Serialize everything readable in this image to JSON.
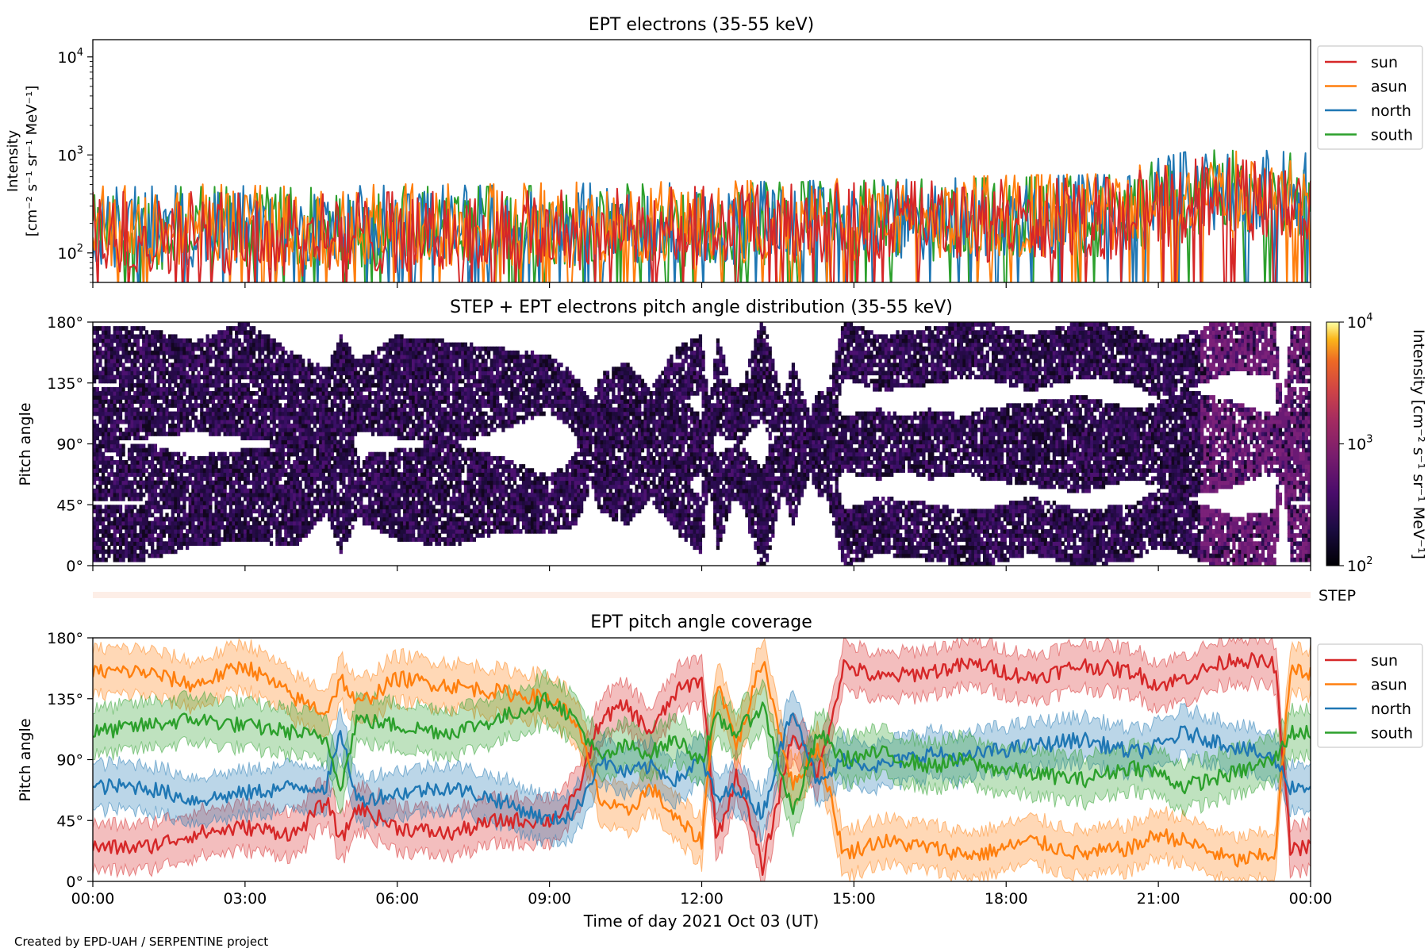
{
  "figure": {
    "credit": "Created by EPD-UAH / SERPENTINE project",
    "xlabel": "Time of day 2021 Oct 03 (UT)",
    "xticks": [
      "00:00",
      "03:00",
      "06:00",
      "09:00",
      "12:00",
      "15:00",
      "18:00",
      "21:00",
      "00:00"
    ]
  },
  "colors": {
    "sun": "#d62728",
    "asun": "#ff7f0e",
    "north": "#1f77b4",
    "south": "#2ca02c"
  },
  "chart_data": [
    {
      "type": "line",
      "title": "EPT electrons (35-55 keV)",
      "ylabel_line1": "Intensity",
      "ylabel_line2": "[cm⁻² s⁻¹ sr⁻¹ MeV⁻¹]",
      "yscale": "log",
      "ylim": [
        50,
        15000
      ],
      "yticks": [
        {
          "base": "10",
          "exp": "2",
          "value": 100
        },
        {
          "base": "10",
          "exp": "3",
          "value": 1000
        },
        {
          "base": "10",
          "exp": "4",
          "value": 10000
        }
      ],
      "x_unit": "hours since 00:00 UT",
      "xlim": [
        0,
        24
      ],
      "legend": "outside-right-top",
      "series": [
        {
          "name": "sun",
          "x": [
            0,
            2,
            4,
            6,
            8,
            10,
            12,
            14,
            16,
            18,
            20,
            21.5,
            22,
            23,
            24
          ],
          "values": [
            150,
            150,
            140,
            150,
            150,
            160,
            170,
            180,
            190,
            200,
            210,
            300,
            350,
            300,
            280
          ]
        },
        {
          "name": "asun",
          "x": [
            0,
            2,
            4,
            6,
            8,
            10,
            12,
            14,
            16,
            18,
            20,
            21.5,
            22,
            23,
            24
          ],
          "values": [
            170,
            180,
            170,
            180,
            180,
            190,
            190,
            200,
            210,
            220,
            230,
            350,
            400,
            380,
            350
          ]
        },
        {
          "name": "north",
          "x": [
            0,
            2,
            4,
            6,
            8,
            10,
            12,
            14,
            16,
            18,
            20,
            21.5,
            22,
            23,
            24
          ],
          "values": [
            165,
            175,
            170,
            175,
            175,
            185,
            185,
            195,
            200,
            215,
            225,
            380,
            420,
            400,
            370
          ]
        },
        {
          "name": "south",
          "x": [
            0,
            2,
            4,
            6,
            8,
            10,
            12,
            14,
            16,
            18,
            20,
            21.5,
            22,
            23,
            24
          ],
          "values": [
            160,
            170,
            165,
            170,
            170,
            180,
            180,
            190,
            200,
            210,
            220,
            360,
            400,
            390,
            360
          ]
        }
      ]
    },
    {
      "type": "heatmap",
      "title": "STEP + EPT electrons pitch angle distribution (35-55 keV)",
      "ylabel": "Pitch angle",
      "yticks": [
        "0°",
        "45°",
        "90°",
        "135°",
        "180°"
      ],
      "ylim": [
        0,
        180
      ],
      "x_unit": "hours since 00:00 UT",
      "xlim": [
        0,
        24
      ],
      "colorbar": {
        "label": "Intensity [cm⁻² s⁻¹ sr⁻¹ MeV⁻¹]",
        "scale": "log",
        "colormap": "inferno",
        "ticks": [
          {
            "base": "10",
            "exp": "2"
          },
          {
            "base": "10",
            "exp": "3"
          },
          {
            "base": "10",
            "exp": "4"
          }
        ]
      },
      "note_label": "STEP",
      "coverage_source": "EPT pitch angle coverage (panel 3)"
    },
    {
      "type": "line",
      "title": "EPT pitch angle coverage",
      "ylabel": "Pitch angle",
      "yticks": [
        "0°",
        "45°",
        "90°",
        "135°",
        "180°"
      ],
      "ylim": [
        0,
        180
      ],
      "x_unit": "hours since 00:00 UT",
      "xlim": [
        0,
        24
      ],
      "legend": "outside-right-top",
      "band_halfwidth_deg": 17,
      "series": [
        {
          "name": "sun",
          "x": [
            0,
            1,
            2,
            3,
            4,
            4.6,
            4.9,
            5.2,
            6,
            7,
            8,
            9,
            9.5,
            10,
            10.5,
            11,
            11.5,
            12,
            12.3,
            12.7,
            13.2,
            13.8,
            14.3,
            14.8,
            15.5,
            16.5,
            17.2,
            17.5,
            18.5,
            19.5,
            20.5,
            21,
            21.5,
            22.5,
            23.3,
            23.6,
            24
          ],
          "values": [
            25,
            25,
            35,
            40,
            35,
            60,
            30,
            55,
            40,
            35,
            45,
            45,
            60,
            120,
            130,
            110,
            140,
            150,
            30,
            80,
            10,
            110,
            80,
            160,
            150,
            155,
            160,
            160,
            150,
            160,
            155,
            145,
            150,
            165,
            160,
            25,
            25
          ]
        },
        {
          "name": "asun",
          "x": [
            0,
            1,
            2,
            3,
            4,
            4.6,
            4.9,
            5.2,
            6,
            7,
            8,
            9,
            9.5,
            10,
            10.5,
            11,
            11.5,
            12,
            12.3,
            12.7,
            13.2,
            13.8,
            14.3,
            14.8,
            15.5,
            16.5,
            17.2,
            17.5,
            18.5,
            19.5,
            20.5,
            21,
            21.5,
            22.5,
            23.3,
            23.6,
            24
          ],
          "values": [
            155,
            155,
            145,
            160,
            135,
            125,
            150,
            130,
            150,
            145,
            140,
            135,
            120,
            60,
            50,
            70,
            45,
            30,
            150,
            100,
            165,
            70,
            100,
            20,
            30,
            25,
            20,
            20,
            30,
            20,
            25,
            35,
            30,
            15,
            20,
            155,
            155
          ]
        },
        {
          "name": "north",
          "x": [
            0,
            1,
            2,
            3,
            4,
            4.6,
            4.9,
            5.2,
            6,
            7,
            8,
            9,
            9.5,
            10,
            10.5,
            11,
            11.5,
            12,
            12.3,
            12.7,
            13.2,
            13.8,
            14.3,
            14.8,
            15.5,
            16.5,
            17.2,
            17.5,
            18.5,
            19.5,
            20.5,
            21,
            21.5,
            22.5,
            23.3,
            23.6,
            24
          ],
          "values": [
            70,
            70,
            60,
            65,
            70,
            70,
            110,
            60,
            65,
            70,
            60,
            45,
            50,
            90,
            80,
            85,
            75,
            90,
            60,
            70,
            50,
            130,
            70,
            90,
            85,
            95,
            90,
            95,
            100,
            105,
            95,
            100,
            110,
            100,
            90,
            70,
            70
          ]
        },
        {
          "name": "south",
          "x": [
            0,
            1,
            2,
            3,
            4,
            4.6,
            4.9,
            5.2,
            6,
            7,
            8,
            9,
            9.5,
            10,
            10.5,
            11,
            11.5,
            12,
            12.3,
            12.7,
            13.2,
            13.8,
            14.3,
            14.8,
            15.5,
            16.5,
            17.2,
            17.5,
            18.5,
            19.5,
            20.5,
            21,
            21.5,
            22.5,
            23.3,
            23.6,
            24
          ],
          "values": [
            110,
            115,
            120,
            115,
            110,
            105,
            70,
            120,
            115,
            110,
            120,
            135,
            120,
            90,
            100,
            95,
            105,
            90,
            120,
            110,
            130,
            50,
            110,
            90,
            95,
            85,
            90,
            85,
            80,
            75,
            85,
            80,
            70,
            80,
            90,
            110,
            110
          ]
        }
      ]
    }
  ]
}
